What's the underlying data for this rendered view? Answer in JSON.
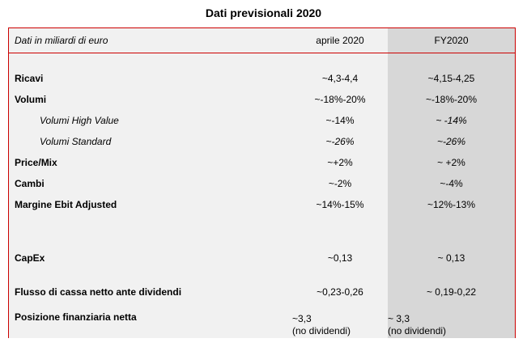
{
  "title": "Dati previsionali 2020",
  "colors": {
    "accent_red": "#cc0000",
    "bg_light": "#f1f1f1",
    "bg_fy_column": "#d7d7d7"
  },
  "table": {
    "columns": [
      "Dati in miliardi di euro",
      "aprile 2020",
      "FY2020"
    ],
    "rows": [
      {
        "label": "Ricavi",
        "bold": true,
        "gap_before": 18,
        "aprile": "~4,3-4,4",
        "fy": "~4,15-4,25"
      },
      {
        "label": "Volumi",
        "bold": true,
        "aprile": "~-18%-20%",
        "fy": "~-18%-20%"
      },
      {
        "label": "Volumi High Value",
        "indent": true,
        "italic": true,
        "aprile": "~-14%",
        "fy": "~ -14%",
        "fy_italic": true
      },
      {
        "label": "Volumi Standard",
        "indent": true,
        "italic": true,
        "aprile": "~-26%",
        "aprile_italic": true,
        "fy": "~-26%",
        "fy_italic": true
      },
      {
        "label": "Price/Mix",
        "bold": true,
        "aprile": "~+2%",
        "fy": "~ +2%"
      },
      {
        "label": "Cambi",
        "bold": true,
        "aprile": "~-2%",
        "fy": "~-4%"
      },
      {
        "label": "Margine Ebit Adjusted",
        "bold": true,
        "aprile": "~14%-15%",
        "fy": "~12%-13%"
      },
      {
        "label": "CapEx",
        "bold": true,
        "gap_before": 40,
        "aprile": "~0,13",
        "fy": "~ 0,13"
      },
      {
        "label": "Flusso di cassa netto ante dividendi",
        "bold": true,
        "gap_before": 16,
        "aprile": "~0,23-0,26",
        "fy": "~ 0,19-0,22"
      },
      {
        "label": "Posizione finanziaria netta",
        "bold": true,
        "gap_before": 6,
        "height": 38,
        "top_align": true,
        "aprile": "~3,3",
        "aprile_note": "(no dividendi)",
        "fy": "~ 3,3",
        "fy_note": "(no dividendi)"
      }
    ]
  }
}
